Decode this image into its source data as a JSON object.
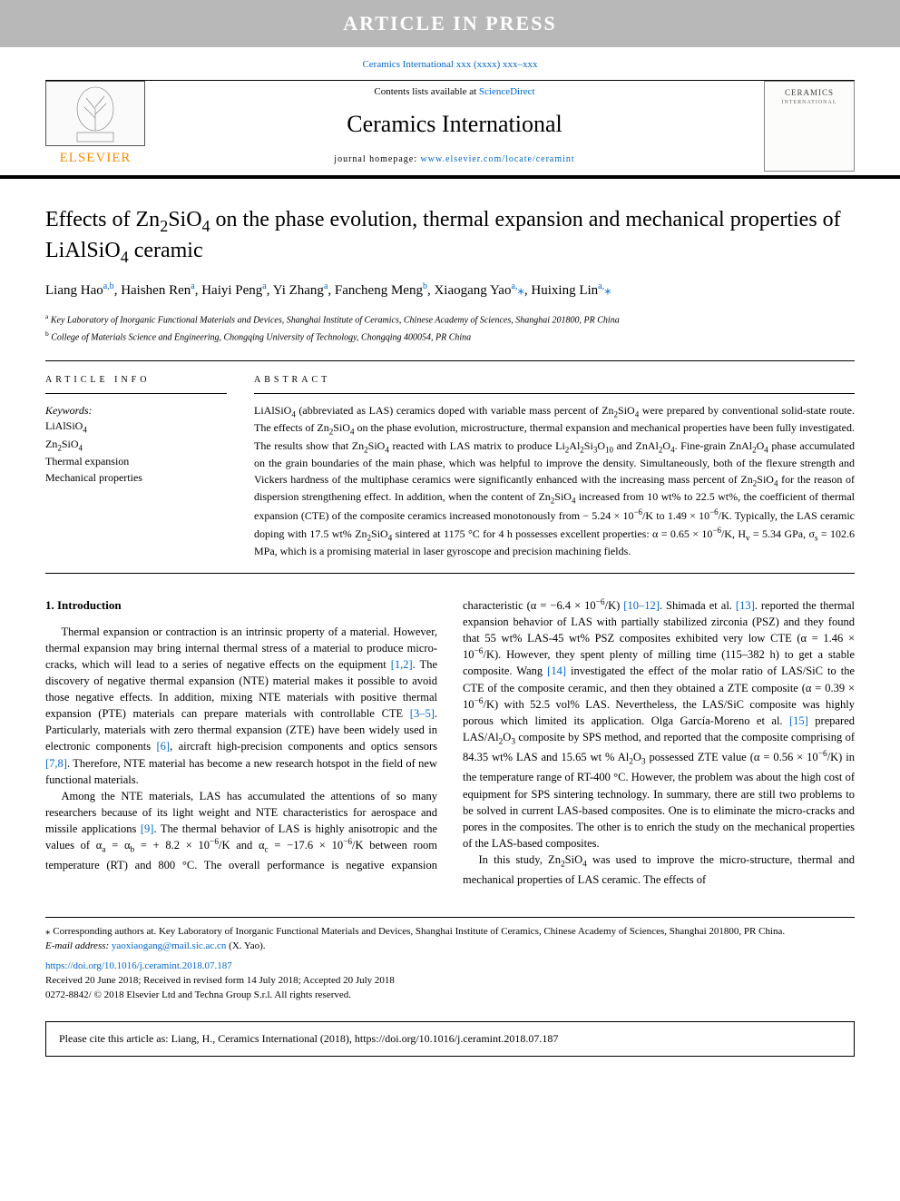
{
  "banner": "ARTICLE IN PRESS",
  "refline_prefix": "Ceramics International xxx (xxxx) xxx–xxx",
  "masthead": {
    "publisher_word": "ELSEVIER",
    "contents_prefix": "Contents lists available at ",
    "contents_link": "ScienceDirect",
    "journal": "Ceramics International",
    "homepage_prefix": "journal homepage: ",
    "homepage_link": "www.elsevier.com/locate/ceramint",
    "cover_title": "CERAMICS",
    "cover_sub": "INTERNATIONAL"
  },
  "title_html": "Effects of Zn<sub>2</sub>SiO<sub>4</sub> on the phase evolution, thermal expansion and mechanical properties of LiAlSiO<sub>4</sub> ceramic",
  "authors_html": "Liang Hao<sup>a,b</sup>, Haishen Ren<sup>a</sup>, Haiyi Peng<sup>a</sup>, Yi Zhang<sup>a</sup>, Fancheng Meng<sup>b</sup>, Xiaogang Yao<sup>a,</sup><span class='star'>⁎</span>, Huixing Lin<sup>a,</sup><span class='star'>⁎</span>",
  "affiliations": [
    {
      "sup": "a",
      "text": "Key Laboratory of Inorganic Functional Materials and Devices, Shanghai Institute of Ceramics, Chinese Academy of Sciences, Shanghai 201800, PR China"
    },
    {
      "sup": "b",
      "text": "College of Materials Science and Engineering, Chongqing University of Technology, Chongqing 400054, PR China"
    }
  ],
  "info_head": "ARTICLE INFO",
  "abs_head": "ABSTRACT",
  "kw_label": "Keywords:",
  "keywords_html": [
    "LiAlSiO<sub>4</sub>",
    "Zn<sub>2</sub>SiO<sub>4</sub>",
    "Thermal expansion",
    "Mechanical properties"
  ],
  "abstract_html": "LiAlSiO<sub>4</sub> (abbreviated as LAS) ceramics doped with variable mass percent of Zn<sub>2</sub>SiO<sub>4</sub> were prepared by conventional solid-state route. The effects of Zn<sub>2</sub>SiO<sub>4</sub> on the phase evolution, microstructure, thermal expansion and mechanical properties have been fully investigated. The results show that Zn<sub>2</sub>SiO<sub>4</sub> reacted with LAS matrix to produce Li<sub>2</sub>Al<sub>2</sub>Si<sub>3</sub>O<sub>10</sub> and ZnAl<sub>2</sub>O<sub>4</sub>. Fine-grain ZnAl<sub>2</sub>O<sub>4</sub> phase accumulated on the grain boundaries of the main phase, which was helpful to improve the density. Simultaneously, both of the flexure strength and Vickers hardness of the multiphase ceramics were significantly enhanced with the increasing mass percent of Zn<sub>2</sub>SiO<sub>4</sub> for the reason of dispersion strengthening effect. In addition, when the content of Zn<sub>2</sub>SiO<sub>4</sub> increased from 10 wt% to 22.5 wt%, the coefficient of thermal expansion (CTE) of the composite ceramics increased monotonously from − 5.24 × 10<sup>−6</sup>/K to 1.49 × 10<sup>−6</sup>/K. Typically, the LAS ceramic doping with 17.5 wt% Zn<sub>2</sub>SiO<sub>4</sub> sintered at 1175 °C for 4 h possesses excellent properties: α = 0.65 × 10<sup>−6</sup>/K, H<sub>v</sub> = 5.34 GPa, σ<sub>s</sub> = 102.6 MPa, which is a promising material in laser gyroscope and precision machining fields.",
  "section_head": "1. Introduction",
  "paragraphs_html": [
    "Thermal expansion or contraction is an intrinsic property of a material. However, thermal expansion may bring internal thermal stress of a material to produce micro-cracks, which will lead to a series of negative effects on the equipment <span class='cite'>[1,2]</span>. The discovery of negative thermal expansion (NTE) material makes it possible to avoid those negative effects. In addition, mixing NTE materials with positive thermal expansion (PTE) materials can prepare materials with controllable CTE <span class='cite'>[3–5]</span>. Particularly, materials with zero thermal expansion (ZTE) have been widely used in electronic components <span class='cite'>[6]</span>, aircraft high-precision components and optics sensors <span class='cite'>[7,8]</span>. Therefore, NTE material has become a new research hotspot in the field of new functional materials.",
    "Among the NTE materials, LAS has accumulated the attentions of so many researchers because of its light weight and NTE characteristics for aerospace and missile applications <span class='cite'>[9]</span>. The thermal behavior of LAS is highly anisotropic and the values of α<sub>a</sub> = α<sub>b</sub> = + 8.2 × 10<sup>−6</sup>/K and α<sub>c</sub> = −17.6 × 10<sup>−6</sup>/K between room temperature (RT) and 800 °C. The overall performance is negative expansion characteristic (α = −6.4 × 10<sup>−6</sup>/K) <span class='cite'>[10–12]</span>. Shimada et al. <span class='cite'>[13]</span>. reported the thermal expansion behavior of LAS with partially stabilized zirconia (PSZ) and they found that 55 wt% LAS-45 wt% PSZ composites exhibited very low CTE (α = 1.46 × 10<sup>−6</sup>/K). However, they spent plenty of milling time (115–382 h) to get a stable composite. Wang <span class='cite'>[14]</span> investigated the effect of the molar ratio of LAS/SiC to the CTE of the composite ceramic, and then they obtained a ZTE composite (α = 0.39 × 10<sup>−6</sup>/K) with 52.5 vol% LAS. Nevertheless, the LAS/SiC composite was highly porous which limited its application. Olga García-Moreno et al. <span class='cite'>[15]</span> prepared LAS/Al<sub>2</sub>O<sub>3</sub> composite by SPS method, and reported that the composite comprising of 84.35 wt% LAS and 15.65 wt % Al<sub>2</sub>O<sub>3</sub> possessed ZTE value (α = 0.56 × 10<sup>−6</sup>/K) in the temperature range of RT-400 °C. However, the problem was about the high cost of equipment for SPS sintering technology. In summary, there are still two problems to be solved in current LAS-based composites. One is to eliminate the micro-cracks and pores in the composites. The other is to enrich the study on the mechanical properties of the LAS-based composites.",
    "In this study, Zn<sub>2</sub>SiO<sub>4</sub> was used to improve the micro-structure, thermal and mechanical properties of LAS ceramic. The effects of"
  ],
  "footnote_corr": "⁎ Corresponding authors at. Key Laboratory of Inorganic Functional Materials and Devices, Shanghai Institute of Ceramics, Chinese Academy of Sciences, Shanghai 201800, PR China.",
  "footnote_email_label": "E-mail address: ",
  "footnote_email": "yaoxiaogang@mail.sic.ac.cn",
  "footnote_email_suffix": " (X. Yao).",
  "doi_link": "https://doi.org/10.1016/j.ceramint.2018.07.187",
  "received": "Received 20 June 2018; Received in revised form 14 July 2018; Accepted 20 July 2018",
  "copyright": "0272-8842/ © 2018 Elsevier Ltd and Techna Group S.r.l. All rights reserved.",
  "citebox": "Please cite this article as: Liang, H., Ceramics International (2018), https://doi.org/10.1016/j.ceramint.2018.07.187",
  "colors": {
    "banner_bg": "#b8b8b8",
    "link": "#0066cc",
    "elsevier": "#ff8c00"
  }
}
